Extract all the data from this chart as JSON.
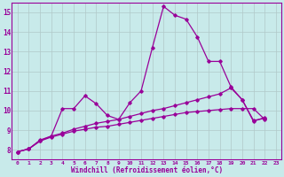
{
  "background_color": "#c8eaea",
  "line_color": "#990099",
  "grid_color": "#b0c8c8",
  "xlabel": "Windchill (Refroidissement éolien,°C)",
  "xlim": [
    -0.5,
    23.5
  ],
  "ylim": [
    7.5,
    15.5
  ],
  "yticks": [
    8,
    9,
    10,
    11,
    12,
    13,
    14,
    15
  ],
  "xticks": [
    0,
    1,
    2,
    3,
    4,
    5,
    6,
    7,
    8,
    9,
    10,
    11,
    12,
    13,
    14,
    15,
    16,
    17,
    18,
    19,
    20,
    21,
    22,
    23
  ],
  "line1_x": [
    0,
    1,
    2,
    3,
    4,
    5,
    6,
    7,
    8,
    9,
    10,
    11,
    12,
    13,
    14,
    15,
    16,
    17,
    18,
    19,
    20,
    21,
    22
  ],
  "line1_y": [
    7.9,
    8.05,
    8.45,
    8.7,
    10.1,
    10.1,
    10.75,
    10.35,
    9.75,
    9.55,
    10.4,
    11.0,
    13.2,
    15.3,
    14.85,
    14.65,
    13.75,
    12.5,
    12.5,
    11.2,
    10.55,
    9.45,
    9.65
  ],
  "line2_x": [
    0,
    1,
    2,
    3,
    4,
    5,
    6,
    7,
    8,
    9,
    10,
    11,
    12,
    13,
    14,
    15,
    16,
    17,
    18,
    19,
    20,
    21,
    22
  ],
  "line2_y": [
    7.9,
    8.05,
    8.5,
    8.7,
    8.85,
    9.05,
    9.2,
    9.35,
    9.45,
    9.55,
    9.7,
    9.85,
    10.0,
    10.1,
    10.25,
    10.4,
    10.55,
    10.7,
    10.85,
    11.15,
    10.55,
    9.5,
    9.6
  ],
  "line3_x": [
    0,
    1,
    2,
    3,
    4,
    5,
    6,
    7,
    8,
    9,
    10,
    11,
    12,
    13,
    14,
    15,
    16,
    17,
    18,
    19,
    20,
    21,
    22
  ],
  "line3_y": [
    7.9,
    8.05,
    8.45,
    8.65,
    8.8,
    8.95,
    9.05,
    9.15,
    9.2,
    9.3,
    9.4,
    9.5,
    9.6,
    9.7,
    9.8,
    9.9,
    9.95,
    10.0,
    10.05,
    10.1,
    10.1,
    10.1,
    9.55
  ]
}
